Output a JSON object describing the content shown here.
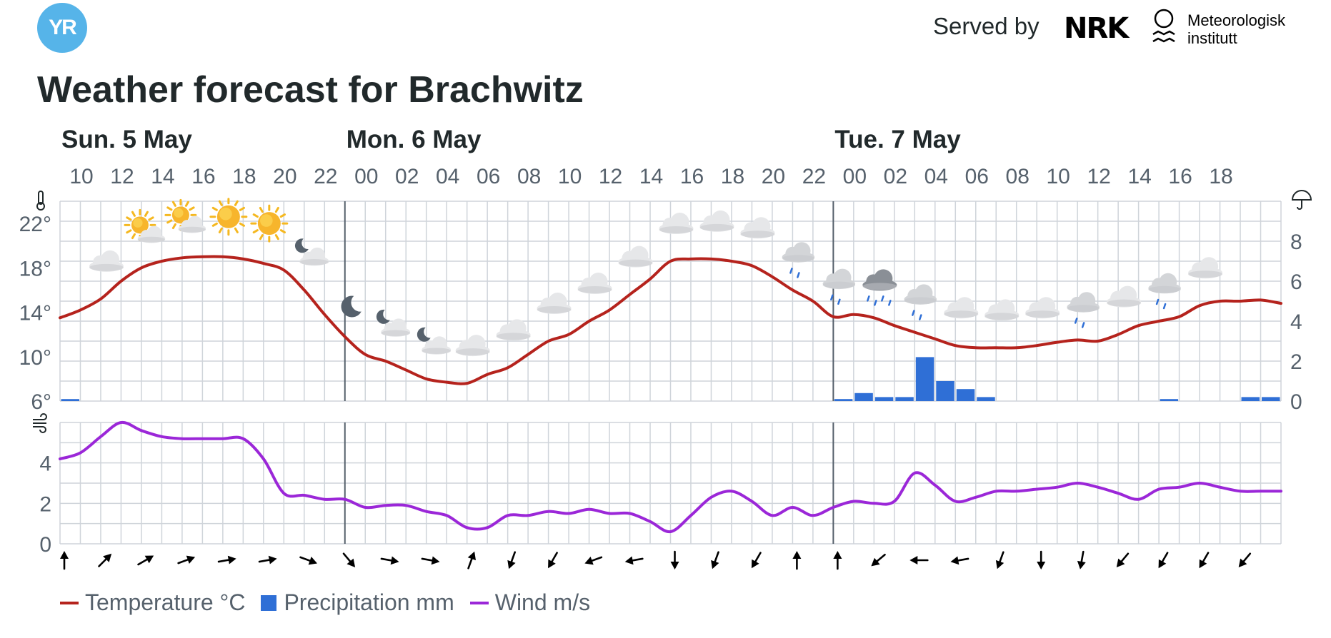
{
  "header": {
    "logo_text": "YR",
    "served_by": "Served by",
    "nrk_logo": "NRK",
    "met_name_line1": "Meteorologisk",
    "met_name_line2": "institutt"
  },
  "title": "Weather forecast for Brachwitz",
  "legend": {
    "temperature": "Temperature °C",
    "precipitation": "Precipitation mm",
    "wind": "Wind m/s"
  },
  "colors": {
    "temperature": "#b5231d",
    "precipitation": "#2f6fd6",
    "wind": "#9b27d8",
    "grid": "#cfd4da",
    "day_divider": "#56616c"
  },
  "icons": {
    "temperature_axis": "thermometer-icon",
    "precipitation_axis": "umbrella-icon",
    "wind_axis": "wind-icon",
    "met_logo": "sun-wave-icon"
  },
  "chart_data": {
    "type": "line",
    "x_unit": "hour",
    "hours_per_column": 1,
    "day_labels": [
      {
        "label": "Sun. 5 May",
        "hour_index": 0
      },
      {
        "label": "Mon. 6 May",
        "hour_index": 14
      },
      {
        "label": "Tue. 7 May",
        "hour_index": 38
      }
    ],
    "day_dividers_hour_index": [
      14,
      38
    ],
    "hour_tick_labels": [
      "10",
      "12",
      "14",
      "16",
      "18",
      "20",
      "22",
      "00",
      "02",
      "04",
      "06",
      "08",
      "10",
      "12",
      "14",
      "16",
      "18",
      "20",
      "22",
      "00",
      "02",
      "04",
      "06",
      "08",
      "10",
      "12",
      "14",
      "16",
      "18"
    ],
    "temperature": {
      "name": "Temperature °C",
      "axis_ticks": [
        "22°",
        "18°",
        "14°",
        "10°",
        "6°"
      ],
      "ylim": [
        6,
        24
      ],
      "values": [
        13.5,
        14.2,
        15.2,
        16.8,
        18.0,
        18.6,
        18.9,
        19.0,
        19.0,
        18.8,
        18.4,
        17.8,
        16.0,
        13.8,
        11.8,
        10.2,
        9.6,
        8.8,
        8.0,
        7.7,
        7.6,
        8.4,
        9.0,
        10.2,
        11.4,
        12.0,
        13.2,
        14.2,
        15.6,
        17.0,
        18.6,
        18.8,
        18.8,
        18.6,
        18.2,
        17.2,
        16.0,
        15.0,
        13.6,
        13.8,
        13.5,
        12.8,
        12.2,
        11.6,
        11.0,
        10.8,
        10.8,
        10.8,
        11.0,
        11.3,
        11.5,
        11.4,
        12.0,
        12.8,
        13.2,
        13.6,
        14.6,
        15.0,
        15.0,
        15.1,
        14.8
      ]
    },
    "precipitation": {
      "name": "Precipitation mm",
      "axis_ticks": [
        "8",
        "6",
        "4",
        "2",
        "0"
      ],
      "ylim": [
        0,
        10
      ],
      "values": [
        0.1,
        0,
        0,
        0,
        0,
        0,
        0,
        0,
        0,
        0,
        0,
        0,
        0,
        0,
        0,
        0,
        0,
        0,
        0,
        0,
        0,
        0,
        0,
        0,
        0,
        0,
        0,
        0,
        0,
        0,
        0,
        0,
        0,
        0,
        0,
        0,
        0,
        0,
        0.1,
        0.4,
        0.2,
        0.2,
        2.2,
        1.0,
        0.6,
        0.2,
        0,
        0,
        0,
        0,
        0,
        0,
        0,
        0,
        0.1,
        0,
        0,
        0,
        0.2,
        0.2,
        0
      ]
    },
    "wind": {
      "name": "Wind m/s",
      "axis_ticks": [
        "4",
        "2",
        "0"
      ],
      "ylim": [
        0,
        6
      ],
      "values": [
        4.2,
        4.5,
        5.3,
        6.0,
        5.6,
        5.3,
        5.2,
        5.2,
        5.2,
        5.2,
        4.2,
        2.5,
        2.4,
        2.2,
        2.2,
        1.8,
        1.9,
        1.9,
        1.6,
        1.4,
        0.8,
        0.8,
        1.4,
        1.4,
        1.6,
        1.5,
        1.7,
        1.5,
        1.5,
        1.1,
        0.6,
        1.4,
        2.3,
        2.6,
        2.1,
        1.4,
        1.8,
        1.4,
        1.8,
        2.1,
        2.0,
        2.1,
        3.5,
        2.9,
        2.1,
        2.3,
        2.6,
        2.6,
        2.7,
        2.8,
        3.0,
        2.8,
        2.5,
        2.2,
        2.7,
        2.8,
        3.0,
        2.8,
        2.6,
        2.6,
        2.6
      ],
      "direction_arrow_angles_deg": [
        0,
        45,
        60,
        70,
        80,
        80,
        110,
        140,
        100,
        100,
        20,
        200,
        210,
        250,
        260,
        180,
        200,
        210,
        0,
        0,
        230,
        270,
        260,
        200,
        180,
        190,
        220,
        210,
        210,
        220
      ]
    },
    "weather_symbols": [
      {
        "hour_index": 2,
        "kind": "cloudy"
      },
      {
        "hour_index": 4,
        "kind": "partly-cloudy-day"
      },
      {
        "hour_index": 6,
        "kind": "partly-cloudy-day"
      },
      {
        "hour_index": 8,
        "kind": "clear-day"
      },
      {
        "hour_index": 10,
        "kind": "clear-day"
      },
      {
        "hour_index": 12,
        "kind": "partly-cloudy-night"
      },
      {
        "hour_index": 14,
        "kind": "clear-night"
      },
      {
        "hour_index": 16,
        "kind": "partly-cloudy-night"
      },
      {
        "hour_index": 18,
        "kind": "partly-cloudy-night"
      },
      {
        "hour_index": 20,
        "kind": "cloudy"
      },
      {
        "hour_index": 22,
        "kind": "cloudy"
      },
      {
        "hour_index": 24,
        "kind": "cloudy"
      },
      {
        "hour_index": 26,
        "kind": "cloudy"
      },
      {
        "hour_index": 28,
        "kind": "cloudy"
      },
      {
        "hour_index": 30,
        "kind": "cloudy"
      },
      {
        "hour_index": 32,
        "kind": "cloudy"
      },
      {
        "hour_index": 34,
        "kind": "cloudy"
      },
      {
        "hour_index": 36,
        "kind": "light-rain"
      },
      {
        "hour_index": 38,
        "kind": "light-rain"
      },
      {
        "hour_index": 40,
        "kind": "rain"
      },
      {
        "hour_index": 42,
        "kind": "light-rain"
      },
      {
        "hour_index": 44,
        "kind": "cloudy"
      },
      {
        "hour_index": 46,
        "kind": "cloudy"
      },
      {
        "hour_index": 48,
        "kind": "cloudy"
      },
      {
        "hour_index": 50,
        "kind": "light-rain"
      },
      {
        "hour_index": 52,
        "kind": "cloudy"
      },
      {
        "hour_index": 54,
        "kind": "light-rain"
      },
      {
        "hour_index": 56,
        "kind": "cloudy"
      }
    ]
  }
}
